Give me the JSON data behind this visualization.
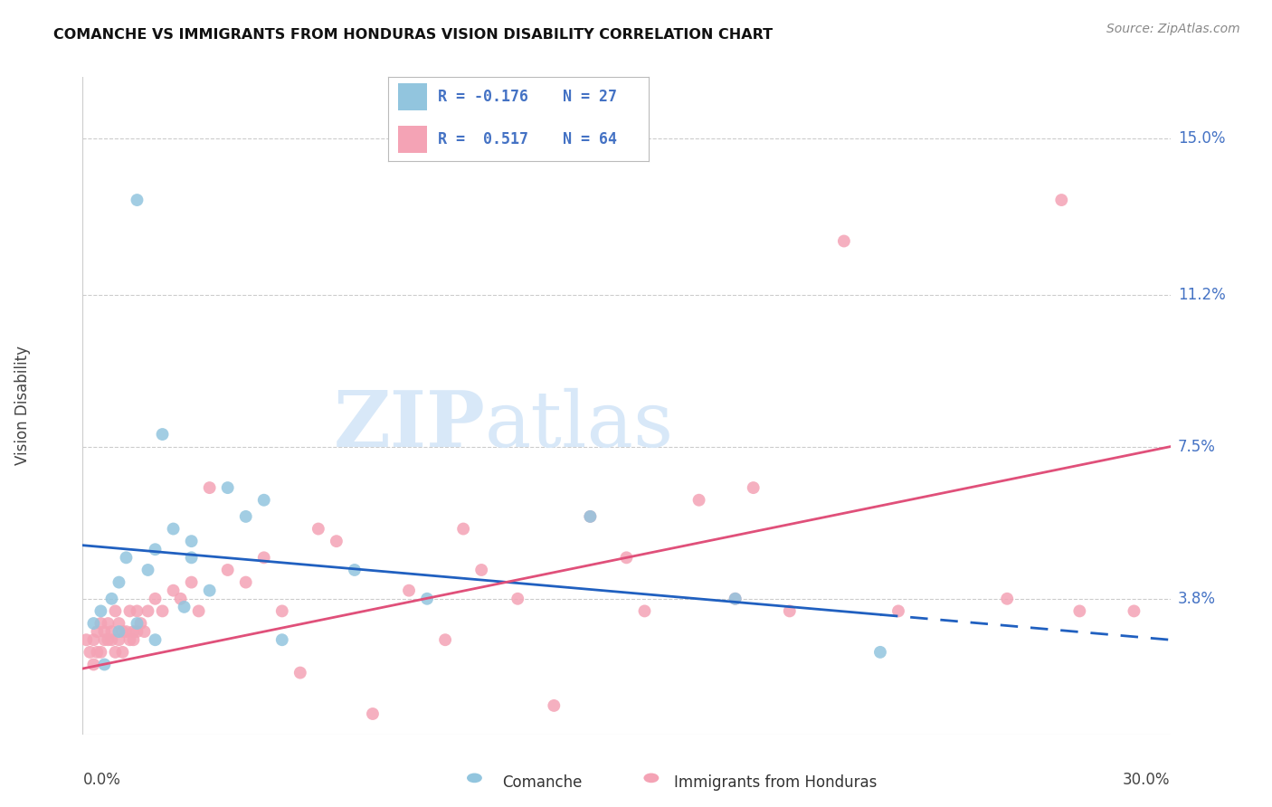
{
  "title": "COMANCHE VS IMMIGRANTS FROM HONDURAS VISION DISABILITY CORRELATION CHART",
  "source": "Source: ZipAtlas.com",
  "ylabel": "Vision Disability",
  "ytick_labels": [
    "3.8%",
    "7.5%",
    "11.2%",
    "15.0%"
  ],
  "ytick_values": [
    3.8,
    7.5,
    11.2,
    15.0
  ],
  "xmin": 0.0,
  "xmax": 30.0,
  "ymin": 0.5,
  "ymax": 16.5,
  "color_blue": "#92C5DE",
  "color_pink": "#F4A3B5",
  "color_blue_line": "#2060C0",
  "color_pink_line": "#E0507A",
  "watermark_color": "#DDEEFF",
  "blue_line_x0": 0.0,
  "blue_line_y0": 5.1,
  "blue_line_x1": 30.0,
  "blue_line_y1": 2.8,
  "blue_solid_end": 22.0,
  "pink_line_x0": 0.0,
  "pink_line_y0": 2.1,
  "pink_line_x1": 30.0,
  "pink_line_y1": 7.5,
  "comanche_x": [
    1.5,
    0.5,
    0.8,
    1.0,
    1.2,
    1.8,
    2.5,
    2.8,
    3.0,
    3.5,
    4.0,
    4.5,
    5.0,
    5.5,
    7.5,
    9.5,
    14.0,
    18.0,
    22.0,
    1.0,
    1.5,
    2.0,
    2.2,
    2.0,
    3.0,
    0.3,
    0.6
  ],
  "comanche_y": [
    13.5,
    3.5,
    3.8,
    4.2,
    4.8,
    4.5,
    5.5,
    3.6,
    5.2,
    4.0,
    6.5,
    5.8,
    6.2,
    2.8,
    4.5,
    3.8,
    5.8,
    3.8,
    2.5,
    3.0,
    3.2,
    2.8,
    7.8,
    5.0,
    4.8,
    3.2,
    2.2
  ],
  "honduras_x": [
    0.1,
    0.2,
    0.3,
    0.3,
    0.4,
    0.4,
    0.5,
    0.5,
    0.6,
    0.6,
    0.7,
    0.7,
    0.8,
    0.8,
    0.9,
    0.9,
    1.0,
    1.0,
    1.1,
    1.1,
    1.2,
    1.3,
    1.3,
    1.4,
    1.4,
    1.5,
    1.5,
    1.6,
    1.7,
    1.8,
    2.0,
    2.2,
    2.5,
    2.7,
    3.0,
    3.2,
    3.5,
    4.0,
    4.5,
    5.0,
    5.5,
    6.0,
    6.5,
    7.0,
    8.0,
    9.0,
    10.0,
    10.5,
    11.0,
    12.0,
    13.0,
    14.0,
    15.0,
    15.5,
    17.0,
    18.0,
    18.5,
    19.5,
    21.0,
    22.5,
    25.5,
    27.0,
    27.5,
    29.0
  ],
  "honduras_y": [
    2.8,
    2.5,
    2.2,
    2.8,
    2.5,
    3.0,
    2.5,
    3.2,
    2.8,
    3.0,
    2.8,
    3.2,
    2.8,
    3.0,
    2.5,
    3.5,
    2.8,
    3.2,
    3.0,
    2.5,
    3.0,
    2.8,
    3.5,
    3.0,
    2.8,
    3.5,
    3.0,
    3.2,
    3.0,
    3.5,
    3.8,
    3.5,
    4.0,
    3.8,
    4.2,
    3.5,
    6.5,
    4.5,
    4.2,
    4.8,
    3.5,
    2.0,
    5.5,
    5.2,
    1.0,
    4.0,
    2.8,
    5.5,
    4.5,
    3.8,
    1.2,
    5.8,
    4.8,
    3.5,
    6.2,
    3.8,
    6.5,
    3.5,
    12.5,
    3.5,
    3.8,
    13.5,
    3.5,
    3.5
  ]
}
